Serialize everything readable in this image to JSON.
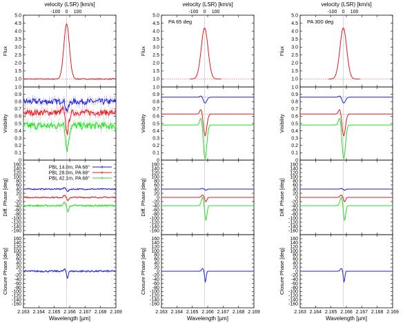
{
  "figure": {
    "top_axis_label": "velocity (LSR) [km/s]",
    "bottom_axis_label": "Wavelength [µm]",
    "line_center_um": 2.1658
  },
  "colors": {
    "flux": "#e8141c",
    "blue": "#1a1adb",
    "red": "#e8141c",
    "green": "#22dd22",
    "center_line": "#bfbfbf",
    "reference": "#e07070"
  },
  "panel_labels": [
    "Flux",
    "Visibility",
    "Diff. Phase [deg]",
    "Closure Phase [deg]"
  ],
  "annotations": [
    "",
    "PA 65 deg",
    "PA 300 deg"
  ],
  "legend": [
    {
      "label": "PBL 14.0m, PA 68°",
      "color": "#1a1adb"
    },
    {
      "label": "PBL 28.0m, PA 68°",
      "color": "#e8141c"
    },
    {
      "label": "PBL 42.1m, PA 68°",
      "color": "#22dd22"
    }
  ],
  "chart_data": [
    {
      "type": "line",
      "title": "velocity (LSR) [km/s]",
      "xlabel": "Wavelength [µm]",
      "xlim": [
        2.163,
        2.169
      ],
      "x_ticks": [
        "2.163",
        "2.164",
        "2.165",
        "2.166",
        "2.167",
        "2.168",
        "2.169"
      ],
      "x_ticks_top": [
        "-100",
        "0",
        "100"
      ],
      "panels": [
        {
          "name": "flux",
          "ylabel": "Flux",
          "ylim": [
            0.5,
            5.0
          ],
          "y_ticks": [
            "1.0",
            "1.5",
            "2.0",
            "2.5",
            "3.0",
            "3.5",
            "4.0",
            "4.5",
            "5.0"
          ],
          "series": [
            {
              "name": "Flux",
              "color": "#e8141c",
              "continuum": 1.0,
              "peak": 4.45,
              "width_um": 0.00018,
              "noise": 0.03,
              "errorbars": false
            }
          ]
        },
        {
          "name": "visibility",
          "ylabel": "Visibility",
          "ylim": [
            0.0,
            1.0
          ],
          "y_ticks": [
            "0",
            "0.1",
            "0.2",
            "0.3",
            "0.4",
            "0.5",
            "0.6",
            "0.7",
            "0.8",
            "0.9",
            "1.0"
          ],
          "series": [
            {
              "name": "PBL 14.0m",
              "color": "#1a1adb",
              "continuum": 0.8,
              "dip": 0.12,
              "noise": 0.04,
              "errorbars": true
            },
            {
              "name": "PBL 28.0m",
              "color": "#e8141c",
              "continuum": 0.65,
              "dip": 0.27,
              "noise": 0.04,
              "errorbars": true
            },
            {
              "name": "PBL 42.1m",
              "color": "#22dd22",
              "continuum": 0.47,
              "dip": 0.32,
              "noise": 0.05,
              "errorbars": true
            }
          ]
        },
        {
          "name": "diff_phase",
          "ylabel": "Diff. Phase [deg]",
          "ylim": [
            -180,
            180
          ],
          "y_ticks": [
            "-160",
            "-140",
            "-120",
            "-100",
            "-80",
            "-60",
            "-40",
            "-20",
            "0",
            "20",
            "40",
            "60",
            "80",
            "100",
            "120",
            "140",
            "160"
          ],
          "series": [
            {
              "name": "PBL 14.0m",
              "color": "#1a1adb",
              "continuum": 40,
              "amp": 12,
              "noise": 3,
              "errorbars": true
            },
            {
              "name": "PBL 28.0m",
              "color": "#e8141c",
              "continuum": 0,
              "amp": 18,
              "noise": 3,
              "errorbars": true
            },
            {
              "name": "PBL 42.1m",
              "color": "#22dd22",
              "continuum": -40,
              "amp": 28,
              "noise": 4,
              "errorbars": true
            }
          ]
        },
        {
          "name": "closure_phase",
          "ylabel": "Closure Phase [deg]",
          "ylim": [
            -180,
            180
          ],
          "y_ticks": [
            "-160",
            "-140",
            "-120",
            "-100",
            "-80",
            "-60",
            "-40",
            "-20",
            "0",
            "20",
            "40",
            "60",
            "80",
            "100",
            "120",
            "140",
            "160"
          ],
          "series": [
            {
              "name": "Closure Phase",
              "color": "#1a1adb",
              "continuum": 0,
              "amp": 35,
              "noise": 4,
              "errorbars": true
            }
          ]
        }
      ]
    },
    {
      "type": "line",
      "title": "velocity (LSR) [km/s]",
      "annotation": "PA 65 deg",
      "xlabel": "Wavelength [µm]",
      "xlim": [
        2.163,
        2.169
      ],
      "x_ticks": [
        "2.163",
        "2.164",
        "2.165",
        "2.166",
        "2.167",
        "2.168",
        "2.169"
      ],
      "x_ticks_top": [
        "-100",
        "0",
        "100"
      ],
      "panels": [
        {
          "name": "flux",
          "ylabel": "Flux",
          "ylim": [
            0.5,
            5.0
          ],
          "y_ticks": [
            "1.0",
            "1.5",
            "2.0",
            "2.5",
            "3.0",
            "3.5",
            "4.0",
            "4.5",
            "5.0"
          ],
          "series": [
            {
              "name": "Flux",
              "color": "#e8141c",
              "continuum": 1.0,
              "peak": 4.2,
              "width_um": 0.00022,
              "noise": 0,
              "errorbars": false
            }
          ]
        },
        {
          "name": "visibility",
          "ylabel": "Visibility",
          "ylim": [
            0.0,
            1.0
          ],
          "y_ticks": [
            "0",
            "0.1",
            "0.2",
            "0.3",
            "0.4",
            "0.5",
            "0.6",
            "0.7",
            "0.8",
            "0.9",
            "1.0"
          ],
          "series": [
            {
              "name": "PBL 14.0m",
              "color": "#1a1adb",
              "continuum": 0.86,
              "dip": 0.08,
              "noise": 0,
              "errorbars": false
            },
            {
              "name": "PBL 28.0m",
              "color": "#e8141c",
              "continuum": 0.63,
              "dip": 0.3,
              "noise": 0,
              "errorbars": false
            },
            {
              "name": "PBL 42.1m",
              "color": "#22dd22",
              "continuum": 0.48,
              "dip": 0.46,
              "noise": 0,
              "errorbars": false
            }
          ]
        },
        {
          "name": "diff_phase",
          "ylabel": "Diff. Phase [deg]",
          "ylim": [
            -180,
            180
          ],
          "y_ticks": [
            "-160",
            "-140",
            "-120",
            "-100",
            "-80",
            "-60",
            "-40",
            "-20",
            "0",
            "20",
            "40",
            "60",
            "80",
            "100",
            "120",
            "140",
            "160"
          ],
          "series": [
            {
              "name": "PBL 14.0m",
              "color": "#1a1adb",
              "continuum": 40,
              "amp": 6,
              "noise": 0,
              "errorbars": false
            },
            {
              "name": "PBL 28.0m",
              "color": "#e8141c",
              "continuum": 0,
              "amp": 22,
              "noise": 0,
              "errorbars": false
            },
            {
              "name": "PBL 42.1m",
              "color": "#22dd22",
              "continuum": -40,
              "amp": 75,
              "noise": 0,
              "errorbars": false
            }
          ]
        },
        {
          "name": "closure_phase",
          "ylabel": "Closure Phase [deg]",
          "ylim": [
            -180,
            180
          ],
          "y_ticks": [
            "-160",
            "-140",
            "-120",
            "-100",
            "-80",
            "-60",
            "-40",
            "-20",
            "0",
            "20",
            "40",
            "60",
            "80",
            "100",
            "120",
            "140",
            "160"
          ],
          "series": [
            {
              "name": "Closure Phase",
              "color": "#1a1adb",
              "continuum": 0,
              "amp": 55,
              "noise": 0,
              "errorbars": false
            }
          ]
        }
      ]
    },
    {
      "type": "line",
      "title": "velocity (LSR) [km/s]",
      "annotation": "PA 300 deg",
      "xlabel": "Wavelength [µm]",
      "xlim": [
        2.163,
        2.169
      ],
      "x_ticks": [
        "2.163",
        "2.164",
        "2.165",
        "2.166",
        "2.167",
        "2.168",
        "2.169"
      ],
      "x_ticks_top": [
        "-100",
        "0",
        "100"
      ],
      "panels": [
        {
          "name": "flux",
          "ylabel": "Flux",
          "ylim": [
            0.5,
            5.0
          ],
          "y_ticks": [
            "1.0",
            "1.5",
            "2.0",
            "2.5",
            "3.0",
            "3.5",
            "4.0",
            "4.5",
            "5.0"
          ],
          "series": [
            {
              "name": "Flux",
              "color": "#e8141c",
              "continuum": 1.0,
              "peak": 4.2,
              "width_um": 0.00022,
              "noise": 0,
              "errorbars": false
            }
          ]
        },
        {
          "name": "visibility",
          "ylabel": "Visibility",
          "ylim": [
            0.0,
            1.0
          ],
          "y_ticks": [
            "0",
            "0.1",
            "0.2",
            "0.3",
            "0.4",
            "0.5",
            "0.6",
            "0.7",
            "0.8",
            "0.9",
            "1.0"
          ],
          "series": [
            {
              "name": "PBL 14.0m",
              "color": "#1a1adb",
              "continuum": 0.86,
              "dip": 0.08,
              "noise": 0,
              "errorbars": false
            },
            {
              "name": "PBL 28.0m",
              "color": "#e8141c",
              "continuum": 0.63,
              "dip": 0.3,
              "noise": 0,
              "errorbars": false
            },
            {
              "name": "PBL 42.1m",
              "color": "#22dd22",
              "continuum": 0.48,
              "dip": 0.46,
              "noise": 0,
              "errorbars": false
            }
          ]
        },
        {
          "name": "diff_phase",
          "ylabel": "Diff. Phase [deg]",
          "ylim": [
            -180,
            180
          ],
          "y_ticks": [
            "-160",
            "-140",
            "-120",
            "-100",
            "-80",
            "-60",
            "-40",
            "-20",
            "0",
            "20",
            "40",
            "60",
            "80",
            "100",
            "120",
            "140",
            "160"
          ],
          "series": [
            {
              "name": "PBL 14.0m",
              "color": "#1a1adb",
              "continuum": 40,
              "amp": 6,
              "noise": 0,
              "errorbars": false
            },
            {
              "name": "PBL 28.0m",
              "color": "#e8141c",
              "continuum": 0,
              "amp": 22,
              "noise": 0,
              "errorbars": false
            },
            {
              "name": "PBL 42.1m",
              "color": "#22dd22",
              "continuum": -40,
              "amp": 75,
              "noise": 0,
              "errorbars": false
            }
          ]
        },
        {
          "name": "closure_phase",
          "ylabel": "Closure Phase [deg]",
          "ylim": [
            -180,
            180
          ],
          "y_ticks": [
            "-160",
            "-140",
            "-120",
            "-100",
            "-80",
            "-60",
            "-40",
            "-20",
            "0",
            "20",
            "40",
            "60",
            "80",
            "100",
            "120",
            "140",
            "160"
          ],
          "series": [
            {
              "name": "Closure Phase",
              "color": "#1a1adb",
              "continuum": 0,
              "amp": 55,
              "noise": 0,
              "errorbars": false
            }
          ]
        }
      ]
    }
  ]
}
